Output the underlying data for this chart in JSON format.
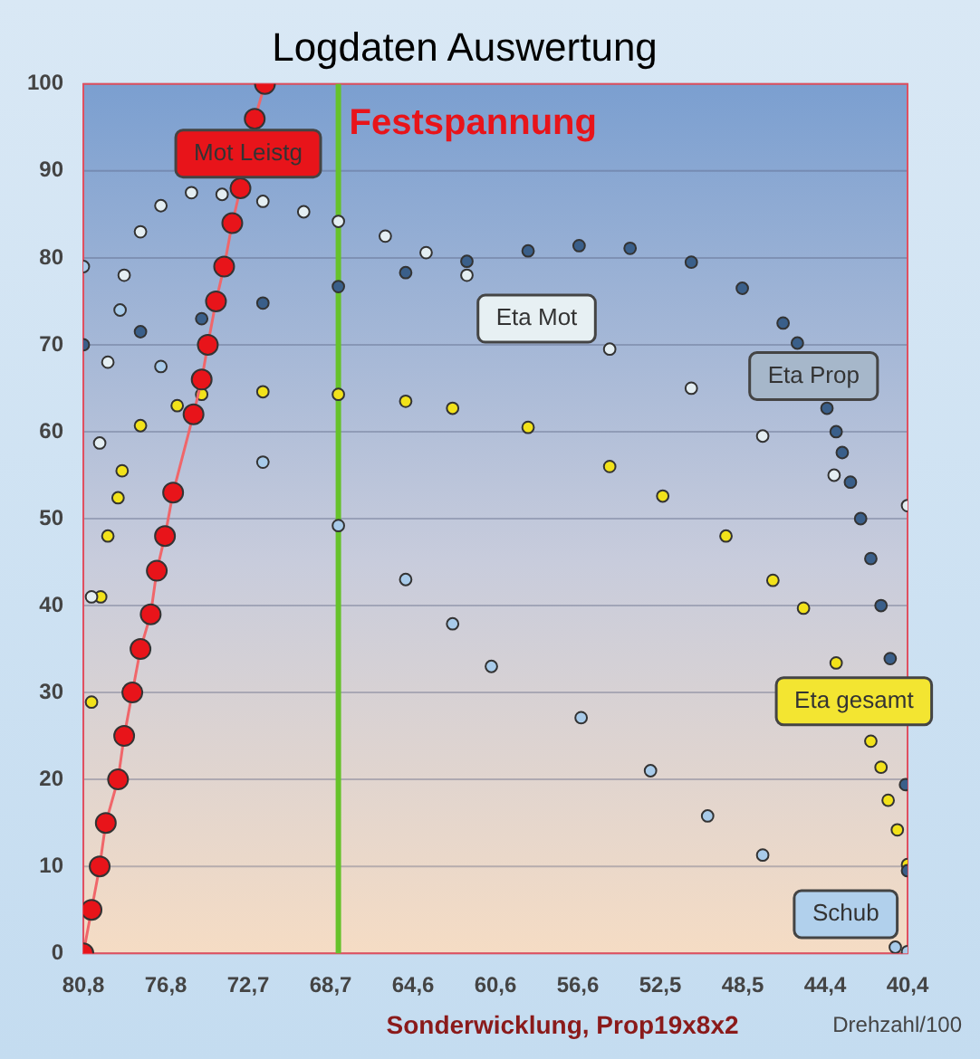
{
  "chart_data": {
    "type": "scatter",
    "title": "Logdaten Auswertung",
    "xlabel": "Drehzahl/100",
    "xlim": [
      80.8,
      40.4
    ],
    "xticks": [
      {
        "value": 80.8,
        "label": "80,8"
      },
      {
        "value": 76.76,
        "label": "76,8"
      },
      {
        "value": 72.72,
        "label": "72,7"
      },
      {
        "value": 68.68,
        "label": "68,7"
      },
      {
        "value": 64.64,
        "label": "64,6"
      },
      {
        "value": 60.6,
        "label": "60,6"
      },
      {
        "value": 56.56,
        "label": "56,6"
      },
      {
        "value": 52.52,
        "label": "52,5"
      },
      {
        "value": 48.48,
        "label": "48,5"
      },
      {
        "value": 44.44,
        "label": "44,4"
      },
      {
        "value": 40.4,
        "label": "40,4"
      }
    ],
    "ylim": [
      0,
      100
    ],
    "yticks": [
      0,
      10,
      20,
      30,
      40,
      50,
      60,
      70,
      80,
      90,
      100
    ],
    "grid": "y",
    "legend": false,
    "marker": "circle",
    "ref_lines": [
      {
        "axis": "x",
        "value": 68.3,
        "label": "Festspannung",
        "color": "#66c22a"
      }
    ],
    "annotations": [
      "Sonderwicklung, Prop19x8x2"
    ],
    "series": [
      {
        "name": "Mot Leistg",
        "type": "line",
        "color": "#e8141a",
        "x": [
          80.8,
          80.4,
          80.0,
          79.7,
          79.1,
          78.8,
          78.4,
          78.0,
          77.5,
          77.2,
          76.8,
          76.4,
          75.4,
          75.0,
          74.7,
          74.3,
          73.9,
          73.5,
          73.1,
          72.4,
          71.9
        ],
        "values": [
          0,
          5,
          10,
          15,
          20,
          25,
          30,
          35,
          39,
          44,
          48,
          53,
          62,
          66,
          70,
          75,
          79,
          84,
          88,
          96,
          100
        ]
      },
      {
        "name": "Eta Mot",
        "color": "#e4eef2",
        "x": [
          80.4,
          80.0,
          79.6,
          78.8,
          78.0,
          77.0,
          75.5,
          74.0,
          72.0,
          70.0,
          68.3,
          66.0,
          64.0,
          62.0,
          60.0,
          57.5,
          55.0,
          51.0,
          47.5,
          44.0,
          40.4
        ],
        "values": [
          41,
          58.7,
          68,
          78,
          83,
          86,
          87.5,
          87.3,
          86.5,
          85.3,
          84.2,
          82.5,
          80.6,
          78,
          null,
          null,
          69.5,
          65,
          59.5,
          55,
          51.5
        ]
      },
      {
        "name": "Eta Prop",
        "color": "#3a5f8a",
        "x": [
          80.8,
          78.0,
          75.0,
          72.0,
          68.3,
          65.0,
          62.0,
          59.0,
          56.5,
          54.0,
          51.0,
          48.5,
          46.5,
          45.8,
          44.35,
          43.9,
          43.6,
          43.2,
          42.7,
          42.2,
          41.7,
          41.25,
          40.5,
          40.4
        ],
        "values": [
          70,
          71.5,
          73,
          74.8,
          76.7,
          78.3,
          79.6,
          80.8,
          81.4,
          81.1,
          79.5,
          76.5,
          72.5,
          70.2,
          62.7,
          60,
          57.6,
          54.2,
          50,
          45.4,
          40,
          33.9,
          19.4,
          9.5
        ]
      },
      {
        "name": "Eta gesamt",
        "color": "#f2e21a",
        "x": [
          80.4,
          79.95,
          79.6,
          79.1,
          78.9,
          78.0,
          76.2,
          75.0,
          72.0,
          68.3,
          65.0,
          62.7,
          59.0,
          55.0,
          52.4,
          49.3,
          47.0,
          45.5,
          43.9,
          42.2,
          41.7,
          41.35,
          40.9,
          40.4
        ],
        "values": [
          28.9,
          41,
          48,
          52.4,
          55.5,
          60.7,
          63,
          64.3,
          64.6,
          64.3,
          63.5,
          62.7,
          60.5,
          56,
          52.6,
          48,
          42.9,
          39.7,
          33.4,
          24.4,
          21.4,
          17.6,
          14.2,
          10.2
        ]
      },
      {
        "name": "Schub",
        "color": "#a8cbea",
        "x": [
          80.8,
          79.0,
          77.0,
          75.0,
          72.0,
          68.3,
          65.0,
          62.7,
          60.8,
          56.4,
          53.0,
          50.2,
          47.5,
          45.1,
          43.0,
          41.0,
          40.4
        ],
        "values": [
          79,
          74,
          67.5,
          null,
          56.5,
          49.2,
          43,
          37.9,
          33,
          27.1,
          21,
          15.8,
          11.3,
          null,
          null,
          0.7,
          0.2
        ]
      }
    ]
  }
}
